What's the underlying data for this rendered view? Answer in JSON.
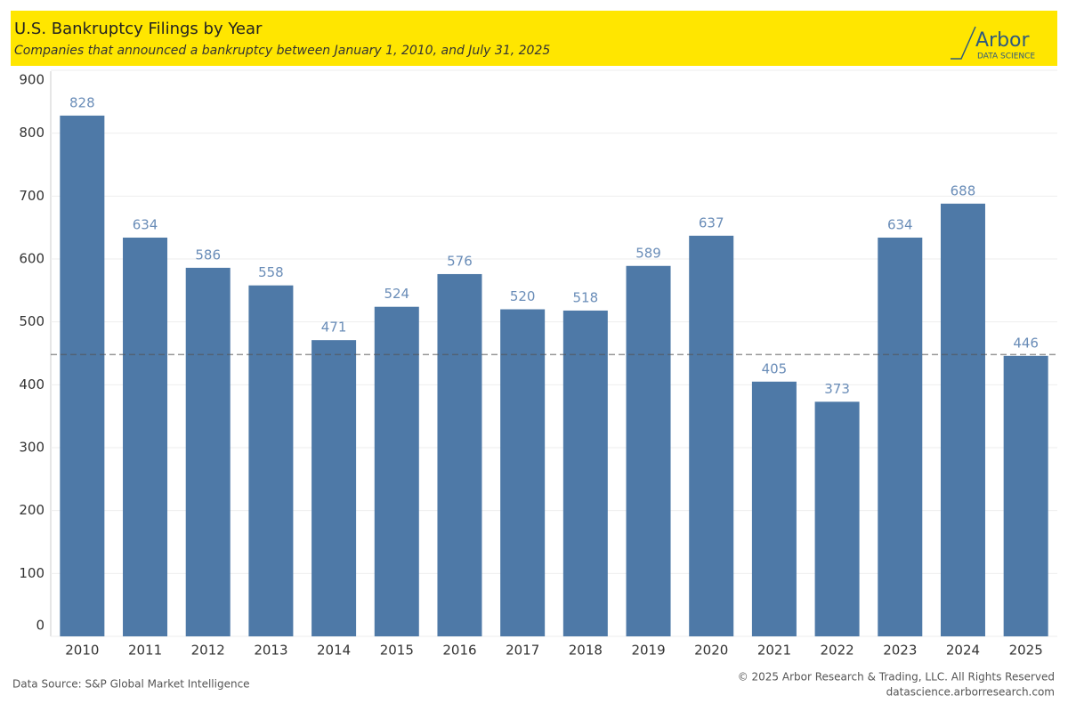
{
  "chart_data": {
    "type": "bar",
    "title": "U.S. Bankruptcy Filings by Year",
    "subtitle": "Companies that announced a bankruptcy between January 1, 2010, and July 31, 2025",
    "logo": {
      "name": "Arbor",
      "tagline": "DATA SCIENCE"
    },
    "categories": [
      "2010",
      "2011",
      "2012",
      "2013",
      "2014",
      "2015",
      "2016",
      "2017",
      "2018",
      "2019",
      "2020",
      "2021",
      "2022",
      "2023",
      "2024",
      "2025"
    ],
    "values": [
      828,
      634,
      586,
      558,
      471,
      524,
      576,
      520,
      518,
      589,
      637,
      405,
      373,
      634,
      688,
      446
    ],
    "color": "#4e79a7",
    "label_color": "#6a8db8",
    "reference_line": 448,
    "ylim": [
      0,
      900
    ],
    "yticks": [
      0,
      100,
      200,
      300,
      400,
      500,
      600,
      700,
      800,
      900
    ],
    "grid": true,
    "source": "Data Source: S&P Global Market Intelligence",
    "copyright": "© 2025 Arbor Research & Trading, LLC. All Rights Reserved",
    "url": "datascience.arborresearch.com"
  }
}
